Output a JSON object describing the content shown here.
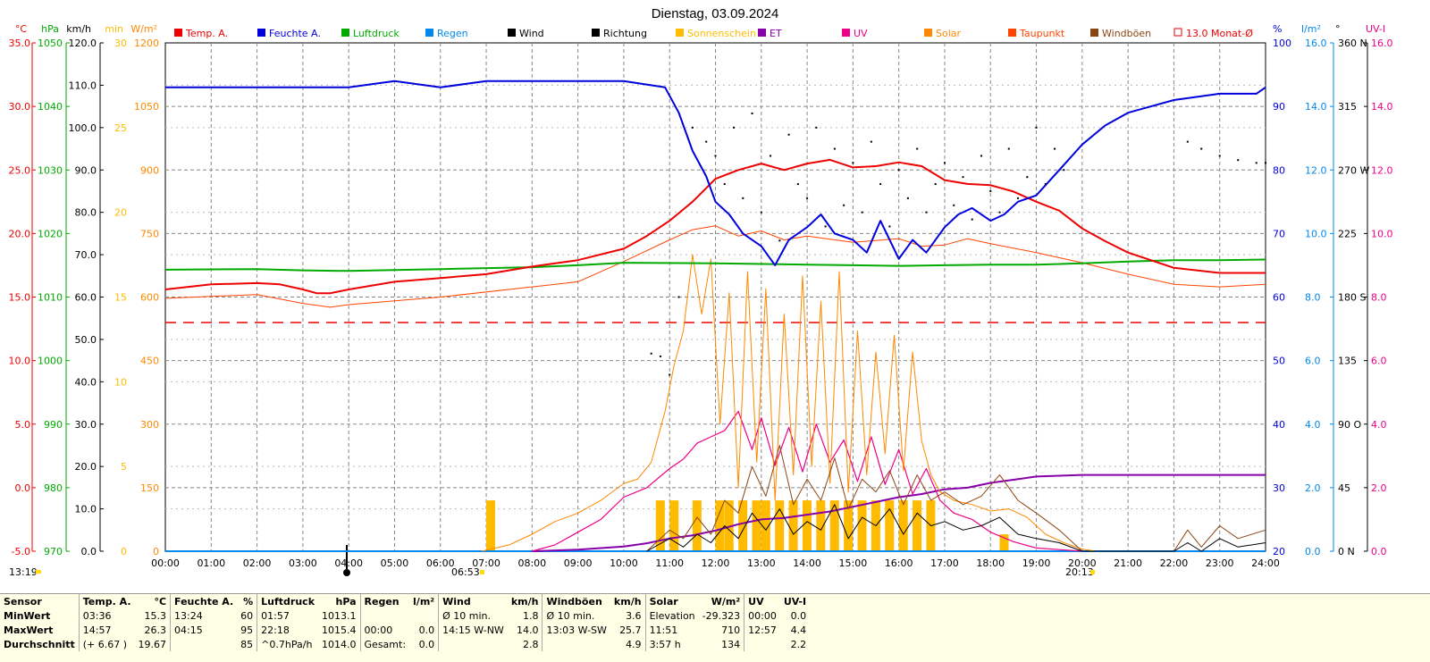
{
  "title": "Dienstag, 03.09.2024",
  "legend": [
    {
      "label": "Temp. A.",
      "color": "#ee0000"
    },
    {
      "label": "Feuchte A.",
      "color": "#0000dd"
    },
    {
      "label": "Luftdruck",
      "color": "#00aa00"
    },
    {
      "label": "Regen",
      "color": "#0088ee"
    },
    {
      "label": "Wind",
      "color": "#000000"
    },
    {
      "label": "Richtung",
      "color": "#000000"
    },
    {
      "label": "Sonnenschein",
      "color": "#ffbb00"
    },
    {
      "label": "ET",
      "color": "#8800aa"
    },
    {
      "label": "UV",
      "color": "#ee0088"
    },
    {
      "label": "Solar",
      "color": "#ff8800"
    },
    {
      "label": "Taupunkt",
      "color": "#ff4400"
    },
    {
      "label": "Windböen",
      "color": "#8b4513"
    },
    {
      "label": "13.0 Monat-Ø",
      "color": "#ee0000"
    }
  ],
  "axes_left": {
    "temp": {
      "unit": "°C",
      "color": "#ee0000",
      "ticks": [
        "35.0",
        "30.0",
        "25.0",
        "20.0",
        "15.0",
        "10.0",
        "5.0",
        "0.0",
        "-5.0"
      ]
    },
    "pressure": {
      "unit": "hPa",
      "color": "#00aa00",
      "ticks": [
        "1050",
        "1040",
        "1030",
        "1020",
        "1010",
        "1000",
        "990",
        "980",
        "970"
      ]
    },
    "wind": {
      "unit": "km/h",
      "color": "#000000",
      "ticks": [
        "120.0",
        "110.0",
        "100.0",
        "90.0",
        "80.0",
        "70.0",
        "60.0",
        "50.0",
        "40.0",
        "30.0",
        "20.0",
        "10.0",
        "0.0"
      ]
    },
    "sunshine": {
      "unit": "min",
      "color": "#ffbb00",
      "ticks": [
        "30",
        "25",
        "20",
        "15",
        "10",
        "5",
        "0"
      ]
    },
    "solar": {
      "unit": "W/m²",
      "color": "#ff8800",
      "ticks": [
        "1200",
        "1050",
        "900",
        "750",
        "600",
        "450",
        "300",
        "150",
        "0"
      ]
    }
  },
  "axes_right": {
    "humidity": {
      "unit": "%",
      "color": "#0000dd",
      "ticks": [
        "100",
        "90",
        "80",
        "70",
        "60",
        "50",
        "40",
        "30",
        "20"
      ]
    },
    "rain": {
      "unit": "l/m²",
      "color": "#0088ee",
      "ticks": [
        "16.0",
        "14.0",
        "12.0",
        "10.0",
        "8.0",
        "6.0",
        "4.0",
        "2.0",
        "0.0"
      ]
    },
    "direction": {
      "unit": "°",
      "color": "#000000",
      "ticks": [
        "360 N",
        "315",
        "270 W",
        "225",
        "180 S",
        "135",
        "90 O",
        "45",
        "0 N"
      ]
    },
    "uvi": {
      "unit": "UV-I",
      "color": "#ee0088",
      "ticks": [
        "16.0",
        "14.0",
        "12.0",
        "10.0",
        "8.0",
        "6.0",
        "4.0",
        "2.0",
        "0.0"
      ]
    }
  },
  "x_ticks": [
    "00:00",
    "01:00",
    "02:00",
    "03:00",
    "04:00",
    "05:00",
    "06:00",
    "07:00",
    "08:00",
    "09:00",
    "10:00",
    "11:00",
    "12:00",
    "13:00",
    "14:00",
    "15:00",
    "16:00",
    "17:00",
    "18:00",
    "19:00",
    "20:00",
    "21:00",
    "22:00",
    "23:00",
    "24:00"
  ],
  "markers": {
    "moon": "13:19",
    "sunrise": "06:53",
    "sunset": "20:13"
  },
  "chart_data": {
    "type": "line",
    "x_unit": "hour",
    "xlim": [
      0,
      24
    ],
    "monthly_avg_temp": 13.0,
    "series": [
      {
        "name": "Temp. A.",
        "unit": "°C",
        "x": [
          0,
          1,
          2,
          2.5,
          3,
          3.3,
          3.6,
          4,
          5,
          6,
          7,
          8,
          9,
          10,
          10.5,
          11,
          11.5,
          12,
          12.5,
          13,
          13.5,
          14,
          14.5,
          15,
          15.5,
          16,
          16.5,
          17,
          17.5,
          18,
          18.5,
          19,
          19.5,
          20,
          20.5,
          21,
          22,
          23,
          24
        ],
        "y": [
          15.6,
          16.0,
          16.1,
          16.0,
          15.6,
          15.3,
          15.3,
          15.6,
          16.2,
          16.5,
          16.8,
          17.4,
          17.9,
          18.8,
          19.8,
          21.0,
          22.5,
          24.3,
          25.0,
          25.5,
          25.0,
          25.5,
          25.8,
          25.2,
          25.3,
          25.6,
          25.3,
          24.2,
          23.9,
          23.8,
          23.3,
          22.5,
          21.8,
          20.4,
          19.4,
          18.5,
          17.3,
          16.9,
          16.9
        ]
      },
      {
        "name": "Feuchte A.",
        "unit": "%",
        "x": [
          0,
          2,
          4,
          5,
          6,
          7,
          8,
          9,
          10,
          10.9,
          11.2,
          11.5,
          11.8,
          12.0,
          12.3,
          12.6,
          13.0,
          13.3,
          13.6,
          14.0,
          14.3,
          14.6,
          15.0,
          15.3,
          15.6,
          16.0,
          16.3,
          16.6,
          17.0,
          17.3,
          17.6,
          18.0,
          18.3,
          18.6,
          19.0,
          19.5,
          20,
          20.5,
          21,
          22,
          23,
          23.8,
          24
        ],
        "y": [
          93,
          93,
          93,
          94,
          93,
          94,
          94,
          94,
          94,
          93,
          89,
          83,
          79,
          75,
          73,
          70,
          68,
          65,
          69,
          71,
          73,
          70,
          69,
          67,
          72,
          66,
          69,
          67,
          71,
          73,
          74,
          72,
          73,
          75,
          76,
          80,
          84,
          87,
          89,
          91,
          92,
          92,
          93
        ]
      },
      {
        "name": "Luftdruck",
        "unit": "hPa",
        "x": [
          0,
          2,
          3,
          4,
          6,
          8,
          9,
          10,
          12,
          14,
          15,
          16,
          17,
          18,
          19,
          20,
          21,
          22,
          23,
          24
        ],
        "y": [
          1014.3,
          1014.4,
          1014.2,
          1014.1,
          1014.4,
          1014.7,
          1015.0,
          1015.4,
          1015.3,
          1015.1,
          1015.0,
          1014.9,
          1015.0,
          1015.1,
          1015.1,
          1015.3,
          1015.6,
          1015.8,
          1015.8,
          1015.9
        ]
      },
      {
        "name": "Taupunkt",
        "unit": "°C",
        "x": [
          0,
          2,
          3,
          3.6,
          4,
          6,
          8,
          9,
          10,
          11,
          11.5,
          12,
          12.5,
          13,
          13.5,
          14,
          15,
          16,
          16.5,
          17,
          17.5,
          18,
          19,
          20,
          21,
          22,
          23,
          24
        ],
        "y": [
          14.9,
          15.2,
          14.5,
          14.2,
          14.4,
          15.0,
          15.8,
          16.2,
          17.8,
          19.5,
          20.3,
          20.6,
          19.8,
          20.2,
          19.5,
          19.8,
          19.3,
          19.6,
          19.0,
          19.1,
          19.6,
          19.2,
          18.5,
          17.7,
          16.8,
          16.0,
          15.8,
          16.0
        ]
      },
      {
        "name": "Solar",
        "unit": "W/m²",
        "x": [
          6.9,
          7.5,
          8,
          8.5,
          9,
          9.5,
          10,
          10.3,
          10.6,
          10.9,
          11.1,
          11.3,
          11.5,
          11.7,
          11.9,
          12.1,
          12.3,
          12.5,
          12.7,
          12.9,
          13.1,
          13.3,
          13.5,
          13.7,
          13.9,
          14.1,
          14.3,
          14.5,
          14.7,
          14.9,
          15.1,
          15.3,
          15.5,
          15.7,
          15.9,
          16.1,
          16.3,
          16.5,
          16.7,
          16.9,
          17.2,
          17.6,
          18,
          18.4,
          18.8,
          19.2,
          19.6,
          20,
          20.3
        ],
        "y": [
          0,
          15,
          40,
          70,
          90,
          120,
          160,
          170,
          210,
          330,
          440,
          520,
          700,
          560,
          690,
          300,
          610,
          150,
          660,
          210,
          620,
          120,
          560,
          180,
          650,
          200,
          590,
          160,
          660,
          140,
          520,
          180,
          470,
          230,
          510,
          190,
          470,
          260,
          180,
          140,
          120,
          110,
          95,
          100,
          80,
          40,
          20,
          5,
          0
        ]
      },
      {
        "name": "UV",
        "unit": "UV-I",
        "x": [
          8,
          8.5,
          9,
          9.5,
          10,
          10.5,
          11,
          11.3,
          11.6,
          11.9,
          12.2,
          12.5,
          12.8,
          13.0,
          13.3,
          13.6,
          13.9,
          14.2,
          14.5,
          14.8,
          15.1,
          15.4,
          15.7,
          16.0,
          16.3,
          16.6,
          16.9,
          17.2,
          17.6,
          18,
          18.5,
          19,
          19.5,
          20
        ],
        "y": [
          0,
          0.2,
          0.6,
          1.0,
          1.7,
          2.0,
          2.6,
          2.9,
          3.4,
          3.6,
          3.8,
          4.4,
          3.2,
          4.2,
          2.7,
          3.9,
          2.5,
          4.0,
          2.8,
          3.5,
          2.2,
          3.6,
          2.1,
          3.2,
          1.8,
          2.6,
          1.6,
          1.2,
          1.0,
          0.6,
          0.3,
          0.1,
          0.05,
          0
        ]
      },
      {
        "name": "ET",
        "unit": "l/m²",
        "x": [
          8,
          9,
          10,
          10.5,
          11,
          11.5,
          12,
          12.5,
          13,
          13.5,
          14,
          14.5,
          15,
          15.5,
          16,
          16.5,
          17,
          17.5,
          18,
          18.5,
          19,
          20,
          21,
          22,
          23,
          24
        ],
        "y": [
          0,
          0.05,
          0.15,
          0.25,
          0.4,
          0.5,
          0.65,
          0.85,
          1.0,
          1.05,
          1.15,
          1.25,
          1.4,
          1.55,
          1.7,
          1.8,
          1.95,
          2.0,
          2.15,
          2.25,
          2.35,
          2.4,
          2.4,
          2.4,
          2.4,
          2.4
        ]
      },
      {
        "name": "Wind",
        "unit": "km/h",
        "x": [
          10.5,
          11,
          11.3,
          11.6,
          11.9,
          12.2,
          12.5,
          12.8,
          13.1,
          13.4,
          13.7,
          14,
          14.3,
          14.6,
          14.9,
          15.2,
          15.5,
          15.8,
          16.1,
          16.4,
          16.7,
          17,
          17.4,
          17.8,
          18.2,
          18.6,
          19,
          19.5,
          20,
          21,
          22,
          22.3,
          22.6,
          23,
          23.4,
          24
        ],
        "y": [
          0,
          3,
          1,
          4,
          2,
          6,
          3,
          9,
          5,
          10,
          4,
          7,
          5,
          11,
          3,
          8,
          6,
          10,
          4,
          9,
          6,
          7,
          5,
          6,
          8,
          4,
          3,
          2,
          0,
          0,
          0,
          2,
          0,
          3,
          1,
          2
        ]
      },
      {
        "name": "Windböen",
        "unit": "km/h",
        "x": [
          10.5,
          11,
          11.3,
          11.6,
          11.9,
          12.2,
          12.5,
          12.8,
          13.1,
          13.4,
          13.7,
          14,
          14.3,
          14.6,
          14.9,
          15.2,
          15.5,
          15.8,
          16.1,
          16.4,
          16.7,
          17,
          17.4,
          17.8,
          18.2,
          18.6,
          19,
          19.5,
          20,
          21,
          22,
          22.3,
          22.6,
          23,
          23.4,
          24
        ],
        "y": [
          0,
          5,
          3,
          8,
          4,
          12,
          9,
          20,
          13,
          25,
          11,
          17,
          12,
          22,
          10,
          17,
          14,
          19,
          11,
          18,
          12,
          14,
          11,
          13,
          18,
          12,
          9,
          5,
          0,
          0,
          0,
          5,
          1,
          6,
          3,
          5
        ]
      },
      {
        "name": "Richtung",
        "unit": "°",
        "x": [
          10.6,
          10.8,
          11,
          11.2,
          11.5,
          11.8,
          12.0,
          12.2,
          12.4,
          12.6,
          12.8,
          13.0,
          13.2,
          13.4,
          13.6,
          13.8,
          14.0,
          14.2,
          14.4,
          14.6,
          14.8,
          15.0,
          15.2,
          15.4,
          15.6,
          15.8,
          16.0,
          16.2,
          16.4,
          16.6,
          16.8,
          17.0,
          17.2,
          17.4,
          17.6,
          17.8,
          18.0,
          18.2,
          18.4,
          18.6,
          18.8,
          19.0,
          19.2,
          19.4,
          19.6,
          22.3,
          22.6,
          23,
          23.4,
          23.8,
          24
        ],
        "y": [
          140,
          138,
          125,
          180,
          300,
          290,
          280,
          260,
          300,
          250,
          310,
          240,
          280,
          220,
          295,
          260,
          250,
          300,
          230,
          285,
          245,
          275,
          240,
          290,
          260,
          230,
          270,
          250,
          285,
          240,
          260,
          275,
          245,
          265,
          235,
          280,
          255,
          240,
          285,
          250,
          265,
          300,
          260,
          285,
          270,
          290,
          285,
          280,
          277,
          275,
          275
        ]
      },
      {
        "name": "Sonnenschein",
        "unit": "min",
        "x": [
          7.0,
          7.2,
          10.7,
          11.0,
          11.5,
          12.0,
          12.2,
          12.5,
          12.8,
          13.0,
          13.3,
          13.6,
          13.9,
          14.2,
          14.5,
          14.8,
          15.1,
          15.4,
          15.7,
          16.0,
          16.3,
          16.6,
          18.2
        ],
        "y": [
          3,
          0,
          3,
          3,
          3,
          3,
          3,
          3,
          3,
          3,
          3,
          3,
          3,
          3,
          3,
          3,
          3,
          3,
          3,
          3,
          3,
          3,
          1
        ]
      },
      {
        "name": "Regen",
        "unit": "l/m²",
        "x": [
          0,
          24
        ],
        "y": [
          0,
          0
        ]
      }
    ]
  },
  "stats": {
    "headers": [
      "Sensor",
      "Temp. A.",
      "°C",
      "Feuchte A.",
      "%",
      "Luftdruck",
      "hPa",
      "Regen",
      "l/m²",
      "Wind",
      "km/h",
      "Windböen",
      "km/h",
      "Solar",
      "W/m²",
      "UV",
      "UV-I"
    ],
    "rows": [
      [
        "MinWert",
        "03:36",
        "15.3",
        "13:24",
        "60",
        "01:57",
        "1013.1",
        "",
        "",
        "Ø 10 min.",
        "1.8",
        "Ø 10 min.",
        "3.6",
        "Elevation",
        "-29.323",
        "00:00",
        "0.0"
      ],
      [
        "MaxWert",
        "14:57",
        "26.3",
        "04:15",
        "95",
        "22:18",
        "1015.4",
        "00:00",
        "0.0",
        "14:15  W-NW",
        "14.0",
        "13:03  W-SW",
        "25.7",
        "11:51",
        "710",
        "12:57",
        "4.4"
      ],
      [
        "Durchschnitt",
        "(+ 6.67 )",
        "19.67",
        "",
        "85",
        "^0.7hPa/h",
        "1014.0",
        "Gesamt:",
        "0.0",
        "",
        "2.8",
        "",
        "4.9",
        "3:57 h",
        "134",
        "",
        "2.2"
      ]
    ]
  }
}
